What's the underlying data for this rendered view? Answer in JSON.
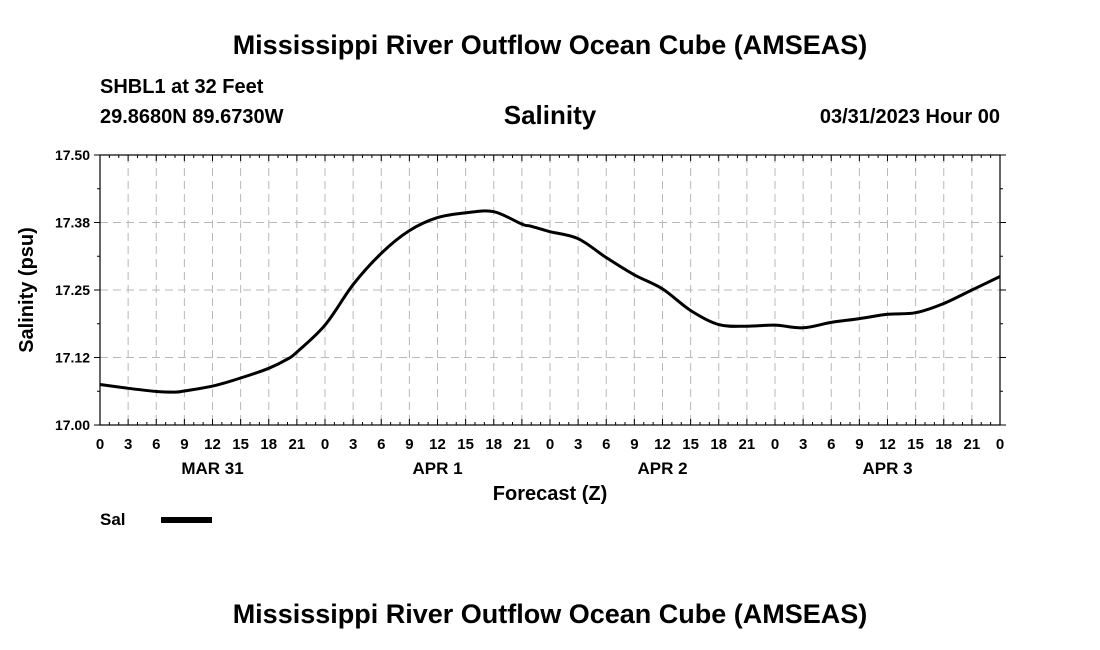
{
  "header": {
    "title": "Mississippi River Outflow Ocean Cube (AMSEAS)",
    "station": "SHBL1 at 32 Feet",
    "coords": "29.8680N  89.6730W",
    "subtitle": "Salinity",
    "timestamp": "03/31/2023 Hour 00"
  },
  "footer": {
    "title": "Mississippi River Outflow Ocean Cube (AMSEAS)"
  },
  "chart_data": {
    "type": "line",
    "title": "Salinity",
    "xlabel": "Forecast (Z)",
    "ylabel": "Salinity (psu)",
    "ylim": [
      17.0,
      17.5
    ],
    "xlim": [
      0,
      96
    ],
    "grid": true,
    "y_ticks": [
      17.0,
      17.125,
      17.25,
      17.375,
      17.5
    ],
    "y_tick_labels": [
      "17.00",
      "17.12",
      "17.25",
      "17.38",
      "17.50"
    ],
    "x_ticks": [
      0,
      3,
      6,
      9,
      12,
      15,
      18,
      21,
      24,
      27,
      30,
      33,
      36,
      39,
      42,
      45,
      48,
      51,
      54,
      57,
      60,
      63,
      66,
      69,
      72,
      75,
      78,
      81,
      84,
      87,
      90,
      93,
      96
    ],
    "x_tick_labels": [
      "0",
      "3",
      "6",
      "9",
      "12",
      "15",
      "18",
      "21",
      "0",
      "3",
      "6",
      "9",
      "12",
      "15",
      "18",
      "21",
      "0",
      "3",
      "6",
      "9",
      "12",
      "15",
      "18",
      "21",
      "0",
      "3",
      "6",
      "9",
      "12",
      "15",
      "18",
      "21",
      "0"
    ],
    "date_labels": [
      {
        "label": "MAR 31",
        "hour": 12
      },
      {
        "label": "APR 1",
        "hour": 36
      },
      {
        "label": "APR 2",
        "hour": 60
      },
      {
        "label": "APR 3",
        "hour": 84
      }
    ],
    "legend": {
      "label": "Sal",
      "placement": "bottom-left"
    },
    "series": [
      {
        "name": "Sal",
        "color": "#000000",
        "x": [
          0,
          3,
          6,
          8,
          9,
          12,
          15,
          18,
          20,
          21,
          24,
          27,
          30,
          33,
          36,
          39,
          42,
          45,
          46,
          48,
          51,
          54,
          57,
          60,
          63,
          66,
          69,
          72,
          75,
          78,
          81,
          84,
          87,
          90,
          93,
          96
        ],
        "values": [
          17.075,
          17.068,
          17.062,
          17.061,
          17.063,
          17.072,
          17.087,
          17.105,
          17.122,
          17.135,
          17.185,
          17.26,
          17.318,
          17.36,
          17.384,
          17.393,
          17.395,
          17.372,
          17.368,
          17.358,
          17.345,
          17.31,
          17.278,
          17.252,
          17.212,
          17.186,
          17.183,
          17.185,
          17.18,
          17.19,
          17.197,
          17.205,
          17.208,
          17.225,
          17.25,
          17.275
        ]
      }
    ]
  }
}
